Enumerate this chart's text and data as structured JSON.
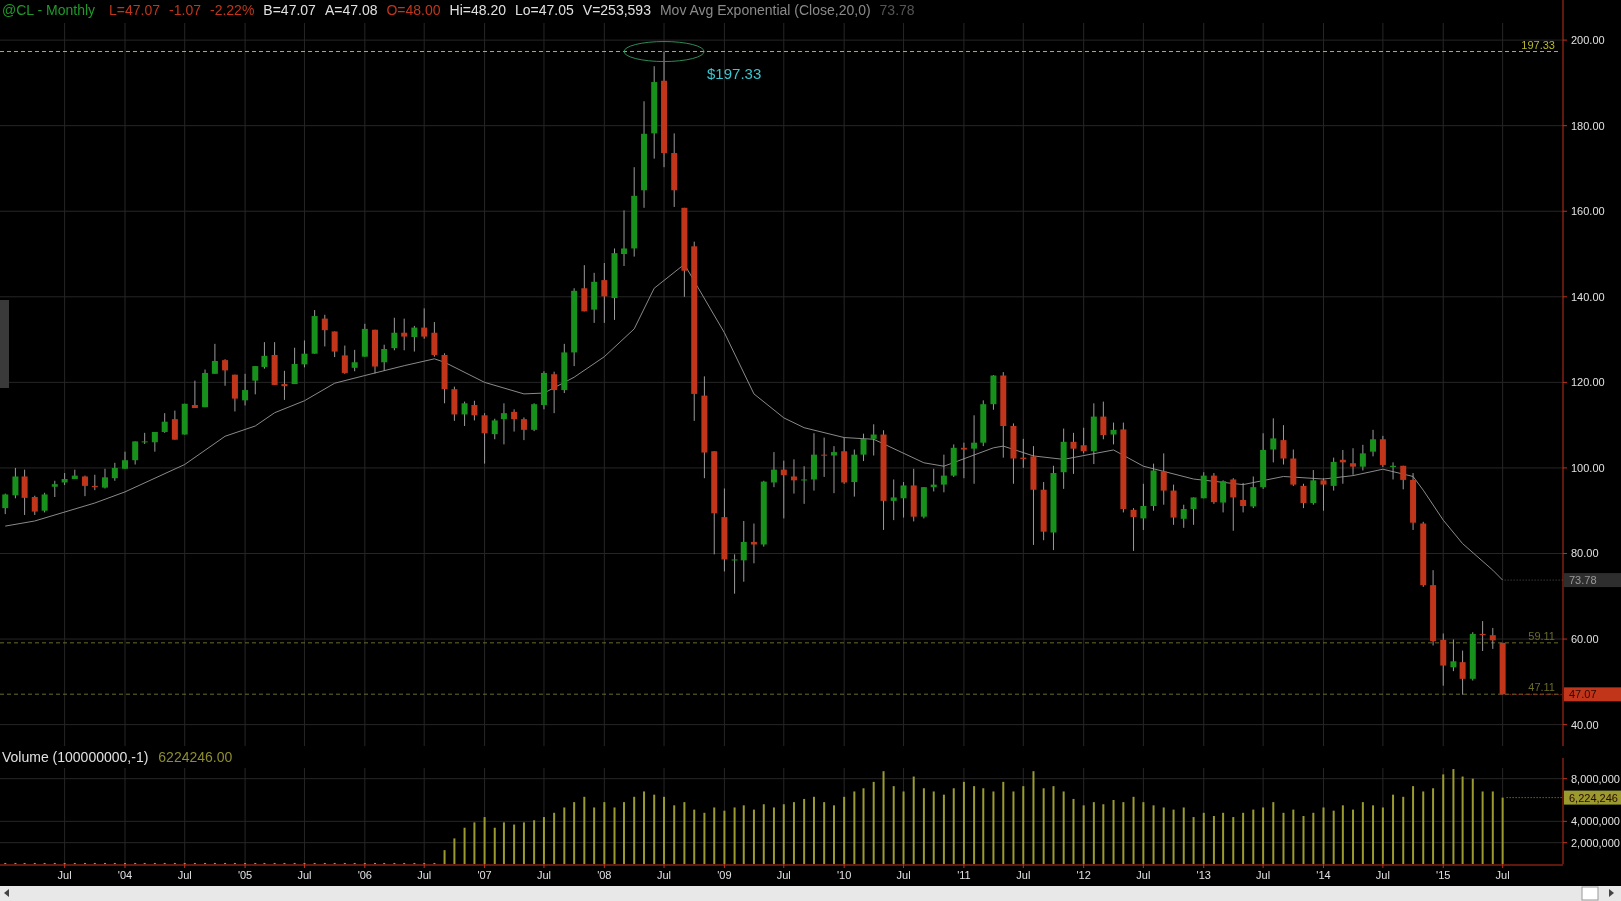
{
  "chart_data": [
    {
      "type": "candlestick",
      "title": "@CL - Monthly",
      "annotations": [
        "L=47.07",
        "-1.07",
        "-2.22%",
        "B=47.07",
        "A=47.08",
        "O=48.00",
        "Hi=48.20",
        "Lo=47.05",
        "V=253,593",
        {
          "text": "$197.33",
          "x": "2008-07",
          "y": 197.33
        },
        {
          "text": "47.07",
          "x": "2015-07",
          "y": 47.07
        }
      ],
      "x": [
        "2003-01",
        "2003-02",
        "2003-03",
        "2003-04",
        "2003-05",
        "2003-06",
        "2003-07",
        "2003-08",
        "2003-09",
        "2003-10",
        "2003-11",
        "2003-12",
        "2004-01",
        "2004-02",
        "2004-03",
        "2004-04",
        "2004-05",
        "2004-06",
        "2004-07",
        "2004-08",
        "2004-09",
        "2004-10",
        "2004-11",
        "2004-12",
        "2005-01",
        "2005-02",
        "2005-03",
        "2005-04",
        "2005-05",
        "2005-06",
        "2005-07",
        "2005-08",
        "2005-09",
        "2005-10",
        "2005-11",
        "2005-12",
        "2006-01",
        "2006-02",
        "2006-03",
        "2006-04",
        "2006-05",
        "2006-06",
        "2006-07",
        "2006-08",
        "2006-09",
        "2006-10",
        "2006-11",
        "2006-12",
        "2007-01",
        "2007-02",
        "2007-03",
        "2007-04",
        "2007-05",
        "2007-06",
        "2007-07",
        "2007-08",
        "2007-09",
        "2007-10",
        "2007-11",
        "2007-12",
        "2008-01",
        "2008-02",
        "2008-03",
        "2008-04",
        "2008-05",
        "2008-06",
        "2008-07",
        "2008-08",
        "2008-09",
        "2008-10",
        "2008-11",
        "2008-12",
        "2009-01",
        "2009-02",
        "2009-03",
        "2009-04",
        "2009-05",
        "2009-06",
        "2009-07",
        "2009-08",
        "2009-09",
        "2009-10",
        "2009-11",
        "2009-12",
        "2010-01",
        "2010-02",
        "2010-03",
        "2010-04",
        "2010-05",
        "2010-06",
        "2010-07",
        "2010-08",
        "2010-09",
        "2010-10",
        "2010-11",
        "2010-12",
        "2011-01",
        "2011-02",
        "2011-03",
        "2011-04",
        "2011-05",
        "2011-06",
        "2011-07",
        "2011-08",
        "2011-09",
        "2011-10",
        "2011-11",
        "2011-12",
        "2012-01",
        "2012-02",
        "2012-03",
        "2012-04",
        "2012-05",
        "2012-06",
        "2012-07",
        "2012-08",
        "2012-09",
        "2012-10",
        "2012-11",
        "2012-12",
        "2013-01",
        "2013-02",
        "2013-03",
        "2013-04",
        "2013-05",
        "2013-06",
        "2013-07",
        "2013-08",
        "2013-09",
        "2013-10",
        "2013-11",
        "2013-12",
        "2014-01",
        "2014-02",
        "2014-03",
        "2014-04",
        "2014-05",
        "2014-06",
        "2014-07",
        "2014-08",
        "2014-09",
        "2014-10",
        "2014-11",
        "2014-12",
        "2015-01",
        "2015-02",
        "2015-03",
        "2015-04",
        "2015-05",
        "2015-06",
        "2015-07"
      ],
      "ohlc": [
        [
          90.6,
          94.0,
          89.2,
          93.8
        ],
        [
          93.6,
          100.0,
          92.9,
          98.0
        ],
        [
          98.0,
          99.6,
          89.0,
          93.0
        ],
        [
          93.2,
          93.5,
          89.0,
          89.8
        ],
        [
          90.0,
          94.2,
          89.6,
          93.8
        ],
        [
          95.6,
          97.0,
          93.2,
          96.2
        ],
        [
          96.6,
          98.8,
          96.0,
          97.4
        ],
        [
          97.4,
          99.6,
          97.4,
          98.2
        ],
        [
          98.0,
          98.2,
          93.4,
          95.8
        ],
        [
          95.8,
          98.4,
          94.8,
          95.5
        ],
        [
          95.4,
          99.8,
          95.2,
          97.8
        ],
        [
          97.6,
          101.2,
          97.0,
          100.0
        ],
        [
          99.8,
          103.8,
          99.8,
          101.8
        ],
        [
          101.8,
          106.2,
          100.8,
          106.2
        ],
        [
          106.0,
          108.2,
          105.6,
          106.2
        ],
        [
          106.0,
          108.4,
          103.8,
          108.4
        ],
        [
          108.4,
          112.8,
          108.2,
          110.8
        ],
        [
          111.4,
          113.4,
          106.6,
          106.6
        ],
        [
          107.8,
          115.0,
          107.8,
          115.0
        ],
        [
          114.7,
          120.4,
          114.0,
          114.0
        ],
        [
          114.2,
          123.0,
          114.2,
          122.2
        ],
        [
          122.0,
          129.0,
          122.0,
          125.0
        ],
        [
          125.2,
          125.4,
          119.2,
          122.8
        ],
        [
          121.8,
          121.8,
          113.2,
          116.2
        ],
        [
          115.8,
          122.0,
          114.6,
          118.2
        ],
        [
          120.4,
          123.8,
          117.2,
          123.8
        ],
        [
          123.6,
          129.4,
          123.2,
          126.2
        ],
        [
          126.4,
          129.4,
          119.4,
          119.4
        ],
        [
          119.6,
          122.7,
          115.9,
          119.1
        ],
        [
          119.6,
          128.1,
          119.6,
          124.3
        ],
        [
          124.2,
          129.8,
          123.5,
          126.7
        ],
        [
          126.7,
          136.9,
          126.7,
          135.5
        ],
        [
          134.9,
          135.8,
          128.4,
          132.2
        ],
        [
          131.9,
          131.9,
          125.9,
          127.2
        ],
        [
          126.3,
          128.6,
          122.0,
          122.2
        ],
        [
          123.4,
          127.6,
          122.6,
          124.7
        ],
        [
          126.0,
          133.7,
          126.0,
          132.5
        ],
        [
          132.3,
          132.3,
          122.1,
          123.7
        ],
        [
          124.7,
          128.8,
          122.7,
          127.8
        ],
        [
          128.0,
          135.1,
          127.5,
          131.6
        ],
        [
          131.6,
          134.9,
          127.5,
          130.7
        ],
        [
          130.6,
          133.2,
          127.2,
          132.8
        ],
        [
          132.8,
          137.3,
          130.2,
          130.7
        ],
        [
          131.6,
          134.1,
          126.0,
          126.4
        ],
        [
          126.4,
          126.8,
          115.1,
          118.4
        ],
        [
          118.4,
          119.0,
          111.0,
          112.5
        ],
        [
          112.5,
          115.5,
          109.8,
          115.1
        ],
        [
          114.7,
          115.7,
          111.1,
          112.3
        ],
        [
          112.3,
          112.8,
          101.0,
          108.1
        ],
        [
          107.9,
          111.5,
          106.7,
          111.1
        ],
        [
          111.4,
          115.1,
          105.5,
          112.8
        ],
        [
          113.1,
          113.7,
          108.5,
          111.4
        ],
        [
          111.4,
          111.8,
          106.5,
          108.9
        ],
        [
          108.9,
          115.1,
          108.6,
          114.9
        ],
        [
          114.7,
          122.6,
          113.7,
          122.2
        ],
        [
          121.9,
          122.5,
          112.8,
          118.2
        ],
        [
          118.2,
          129.0,
          117.5,
          127.0
        ],
        [
          127.0,
          142.0,
          123.8,
          141.4
        ],
        [
          142.0,
          147.4,
          136.6,
          136.6
        ],
        [
          137.0,
          145.6,
          133.9,
          143.5
        ],
        [
          143.9,
          147.9,
          133.9,
          140.1
        ],
        [
          139.7,
          151.3,
          134.6,
          150.2
        ],
        [
          150.0,
          160.2,
          147.2,
          151.3
        ],
        [
          151.3,
          170.3,
          149.4,
          163.6
        ],
        [
          164.9,
          185.7,
          160.8,
          178.1
        ],
        [
          178.2,
          193.9,
          172.3,
          190.2
        ],
        [
          190.5,
          197.33,
          170.3,
          173.6
        ],
        [
          173.6,
          178.2,
          161.0,
          164.9
        ],
        [
          160.8,
          160.8,
          140.0,
          146.1
        ],
        [
          151.8,
          152.9,
          111.0,
          117.3
        ],
        [
          116.9,
          121.4,
          97.6,
          103.6
        ],
        [
          103.9,
          103.9,
          79.8,
          89.4
        ],
        [
          88.5,
          95.2,
          75.8,
          78.6
        ],
        [
          78.4,
          79.8,
          70.6,
          78.6
        ],
        [
          78.4,
          87.6,
          73.4,
          82.7
        ],
        [
          82.7,
          87.0,
          77.7,
          82.1
        ],
        [
          82.1,
          97.0,
          81.6,
          96.8
        ],
        [
          96.6,
          103.7,
          95.5,
          99.6
        ],
        [
          99.6,
          101.7,
          88.2,
          98.3
        ],
        [
          98.0,
          102.0,
          94.0,
          97.1
        ],
        [
          97.1,
          100.4,
          91.6,
          97.3
        ],
        [
          97.3,
          108.1,
          94.7,
          103.1
        ],
        [
          103.1,
          107.1,
          97.9,
          102.9
        ],
        [
          102.9,
          105.1,
          94.1,
          103.7
        ],
        [
          103.9,
          107.1,
          96.3,
          96.6
        ],
        [
          96.7,
          104.3,
          93.3,
          103.1
        ],
        [
          103.1,
          108.0,
          101.6,
          106.8
        ],
        [
          106.8,
          110.2,
          102.9,
          107.8
        ],
        [
          107.8,
          108.8,
          85.5,
          92.3
        ],
        [
          92.3,
          97.3,
          87.8,
          93.1
        ],
        [
          92.9,
          96.7,
          88.4,
          95.9
        ],
        [
          95.9,
          99.8,
          87.5,
          88.6
        ],
        [
          88.6,
          95.5,
          88.2,
          95.5
        ],
        [
          95.5,
          99.8,
          94.5,
          96.1
        ],
        [
          96.1,
          103.1,
          94.3,
          98.2
        ],
        [
          98.2,
          105.5,
          97.9,
          104.7
        ],
        [
          104.7,
          105.9,
          97.6,
          104.3
        ],
        [
          104.5,
          112.3,
          96.3,
          105.9
        ],
        [
          105.9,
          115.8,
          105.1,
          114.9
        ],
        [
          114.9,
          121.7,
          113.6,
          121.6
        ],
        [
          121.6,
          122.4,
          102.4,
          109.8
        ],
        [
          109.8,
          110.4,
          96.3,
          102.2
        ],
        [
          102.4,
          106.8,
          100.0,
          102.1
        ],
        [
          102.7,
          105.1,
          82.0,
          94.9
        ],
        [
          94.9,
          96.7,
          83.1,
          85.1
        ],
        [
          84.9,
          100.5,
          80.8,
          98.8
        ],
        [
          99.0,
          109.2,
          95.1,
          106.1
        ],
        [
          106.1,
          108.2,
          98.6,
          104.5
        ],
        [
          105.3,
          109.4,
          103.4,
          103.9
        ],
        [
          103.9,
          115.1,
          100.9,
          112.0
        ],
        [
          112.0,
          115.5,
          106.7,
          107.7
        ],
        [
          107.8,
          110.6,
          105.5,
          108.9
        ],
        [
          109.0,
          110.6,
          89.6,
          90.4
        ],
        [
          90.2,
          90.6,
          80.6,
          88.5
        ],
        [
          88.2,
          96.3,
          85.5,
          91.1
        ],
        [
          91.1,
          101.0,
          90.0,
          99.4
        ],
        [
          99.2,
          103.4,
          91.4,
          94.7
        ],
        [
          94.7,
          96.1,
          86.7,
          88.4
        ],
        [
          88.1,
          91.4,
          86.0,
          90.4
        ],
        [
          90.4,
          93.1,
          86.7,
          93.1
        ],
        [
          92.9,
          99.0,
          92.9,
          98.2
        ],
        [
          98.2,
          98.8,
          91.6,
          92.0
        ],
        [
          91.9,
          97.1,
          89.6,
          96.9
        ],
        [
          97.3,
          97.6,
          85.3,
          93.1
        ],
        [
          92.5,
          96.5,
          89.6,
          91.1
        ],
        [
          91.0,
          98.0,
          90.6,
          95.5
        ],
        [
          95.5,
          108.1,
          95.1,
          104.2
        ],
        [
          104.3,
          111.6,
          101.3,
          106.9
        ],
        [
          106.5,
          110.0,
          100.8,
          102.2
        ],
        [
          102.2,
          104.3,
          95.8,
          96.1
        ],
        [
          95.8,
          96.3,
          90.6,
          91.8
        ],
        [
          91.8,
          99.5,
          91.4,
          97.1
        ],
        [
          97.1,
          97.6,
          90.0,
          96.1
        ],
        [
          95.8,
          102.4,
          94.7,
          101.4
        ],
        [
          101.9,
          104.2,
          96.3,
          101.3
        ],
        [
          101.1,
          104.6,
          98.4,
          100.3
        ],
        [
          100.3,
          105.4,
          99.4,
          103.4
        ],
        [
          103.8,
          108.9,
          102.7,
          106.7
        ],
        [
          106.7,
          107.5,
          100.2,
          100.7
        ],
        [
          100.2,
          101.3,
          97.3,
          100.5
        ],
        [
          100.5,
          100.5,
          95.0,
          97.2
        ],
        [
          97.2,
          98.8,
          85.5,
          87.2
        ],
        [
          87.0,
          87.4,
          72.2,
          72.6
        ],
        [
          72.6,
          76.1,
          58.5,
          59.5
        ],
        [
          59.8,
          61.3,
          49.1,
          53.8
        ],
        [
          53.4,
          59.9,
          52.5,
          54.8
        ],
        [
          54.6,
          57.3,
          47.0,
          50.7
        ],
        [
          50.7,
          61.6,
          50.3,
          61.2
        ],
        [
          61.2,
          64.2,
          57.2,
          60.9
        ],
        [
          60.9,
          62.6,
          57.7,
          59.7
        ],
        [
          59.11,
          59.11,
          47.05,
          47.07
        ]
      ],
      "series": [
        {
          "type": "line",
          "name": "Mov Avg Exponential (Close,20,0)",
          "color": "#8a8a8a",
          "x": [
            "2003-01",
            "2003-04",
            "2003-10",
            "2004-01",
            "2004-07",
            "2004-11",
            "2005-02",
            "2005-04",
            "2005-07",
            "2005-10",
            "2006-01",
            "2006-05",
            "2006-08",
            "2006-09",
            "2007-01",
            "2007-05",
            "2007-07",
            "2007-10",
            "2008-01",
            "2008-04",
            "2008-06",
            "2008-09",
            "2009-01",
            "2009-04",
            "2009-07",
            "2009-09",
            "2010-01",
            "2010-04",
            "2010-09",
            "2010-11",
            "2011-04",
            "2011-05",
            "2011-08",
            "2011-11",
            "2012-04",
            "2012-07",
            "2012-12",
            "2013-05",
            "2013-09",
            "2014-01",
            "2014-04",
            "2014-07",
            "2014-10",
            "2014-11",
            "2015-01",
            "2015-03",
            "2015-06",
            "2015-07"
          ],
          "values": [
            86.4,
            87.6,
            91.8,
            94.4,
            100.8,
            107.4,
            109.8,
            112.9,
            115.7,
            119.8,
            121.6,
            123.9,
            125.5,
            124.7,
            120.0,
            117.3,
            117.5,
            121.2,
            126.0,
            132.5,
            142.0,
            147.6,
            131.6,
            117.3,
            111.7,
            109.4,
            107.1,
            106.7,
            101.2,
            100.4,
            104.7,
            105.1,
            102.8,
            102.0,
            104.2,
            100.4,
            97.4,
            96.1,
            98.0,
            97.4,
            98.2,
            99.7,
            98.0,
            94.8,
            87.8,
            82.3,
            76.1,
            73.78
          ],
          "value_labels": [
            null,
            null,
            null,
            null,
            null,
            null,
            null,
            null,
            null,
            null,
            null,
            null,
            null,
            null,
            null,
            null,
            null,
            null,
            null,
            null,
            null,
            null,
            null,
            null,
            null,
            null,
            null,
            null,
            null,
            null,
            null,
            null,
            null,
            null,
            null,
            null,
            null,
            null,
            null,
            null,
            null,
            null,
            null,
            null,
            null,
            null,
            null,
            "73.78"
          ]
        }
      ],
      "xlim": [
        "2002-12-16",
        "2016-01-01"
      ],
      "xticks": [
        {
          "value": "2003-07",
          "label": null
        },
        {
          "value": "2004-01",
          "label": null
        },
        {
          "value": "2004-07",
          "label": null
        },
        {
          "value": "2005-01",
          "label": null
        },
        {
          "value": "2005-07",
          "label": null
        },
        {
          "value": "2006-01",
          "label": null
        },
        {
          "value": "2006-07",
          "label": null
        },
        {
          "value": "2007-01",
          "label": null
        },
        {
          "value": "2007-07",
          "label": null
        },
        {
          "value": "2008-01",
          "label": null
        },
        {
          "value": "2008-07",
          "label": null
        },
        {
          "value": "2009-01",
          "label": null
        },
        {
          "value": "2009-07",
          "label": null
        },
        {
          "value": "2010-01",
          "label": null
        },
        {
          "value": "2010-07",
          "label": null
        },
        {
          "value": "2011-01",
          "label": null
        },
        {
          "value": "2011-07",
          "label": null
        },
        {
          "value": "2012-01",
          "label": null
        },
        {
          "value": "2012-07",
          "label": null
        },
        {
          "value": "2013-01",
          "label": null
        },
        {
          "value": "2013-07",
          "label": null
        },
        {
          "value": "2014-01",
          "label": null
        },
        {
          "value": "2014-07",
          "label": null
        },
        {
          "value": "2015-01",
          "label": null
        },
        {
          "value": "2015-07",
          "label": null
        }
      ],
      "ylim": [
        35,
        204
      ],
      "yticks": [
        {
          "value": 40,
          "label": "40.00"
        },
        {
          "value": 60,
          "label": "60.00"
        },
        {
          "value": 80,
          "label": "80.00"
        },
        {
          "value": 100,
          "label": "100.00"
        },
        {
          "value": 120,
          "label": "120.00"
        },
        {
          "value": 140,
          "label": "140.00"
        },
        {
          "value": 160,
          "label": "160.00"
        },
        {
          "value": 180,
          "label": "180.00"
        },
        {
          "value": 200,
          "label": "200.00"
        }
      ],
      "ref_lines": [
        {
          "axis": "y",
          "value": 197.33,
          "label": "197.33",
          "color": "#b8b82c",
          "line_style": "dashed"
        },
        {
          "axis": "y",
          "value": 59.11,
          "label": "59.11",
          "color": "#6b6b2c",
          "line_style": "dashed"
        },
        {
          "axis": "y",
          "value": 47.11,
          "label": "47.11",
          "color": "#6b6b2c",
          "line_style": "dashed"
        }
      ],
      "grid": true,
      "tick_labels": "y"
    },
    {
      "type": "bar",
      "title": "Volume (100000000,-1)",
      "color": "#9a9a2e",
      "annotations": [
        "6224246.00",
        {
          "text": "6,224,246",
          "x": "2015-07",
          "y": 6224246
        }
      ],
      "x": [
        "2003-01",
        "2003-02",
        "2003-03",
        "2003-04",
        "2003-05",
        "2003-06",
        "2003-07",
        "2003-08",
        "2003-09",
        "2003-10",
        "2003-11",
        "2003-12",
        "2004-01",
        "2004-02",
        "2004-03",
        "2004-04",
        "2004-05",
        "2004-06",
        "2004-07",
        "2004-08",
        "2004-09",
        "2004-10",
        "2004-11",
        "2004-12",
        "2005-01",
        "2005-02",
        "2005-03",
        "2005-04",
        "2005-05",
        "2005-06",
        "2005-07",
        "2005-08",
        "2005-09",
        "2005-10",
        "2005-11",
        "2005-12",
        "2006-01",
        "2006-02",
        "2006-03",
        "2006-04",
        "2006-05",
        "2006-06",
        "2006-07",
        "2006-08",
        "2006-09",
        "2006-10",
        "2006-11",
        "2006-12",
        "2007-01",
        "2007-02",
        "2007-03",
        "2007-04",
        "2007-05",
        "2007-06",
        "2007-07",
        "2007-08",
        "2007-09",
        "2007-10",
        "2007-11",
        "2007-12",
        "2008-01",
        "2008-02",
        "2008-03",
        "2008-04",
        "2008-05",
        "2008-06",
        "2008-07",
        "2008-08",
        "2008-09",
        "2008-10",
        "2008-11",
        "2008-12",
        "2009-01",
        "2009-02",
        "2009-03",
        "2009-04",
        "2009-05",
        "2009-06",
        "2009-07",
        "2009-08",
        "2009-09",
        "2009-10",
        "2009-11",
        "2009-12",
        "2010-01",
        "2010-02",
        "2010-03",
        "2010-04",
        "2010-05",
        "2010-06",
        "2010-07",
        "2010-08",
        "2010-09",
        "2010-10",
        "2010-11",
        "2010-12",
        "2011-01",
        "2011-02",
        "2011-03",
        "2011-04",
        "2011-05",
        "2011-06",
        "2011-07",
        "2011-08",
        "2011-09",
        "2011-10",
        "2011-11",
        "2011-12",
        "2012-01",
        "2012-02",
        "2012-03",
        "2012-04",
        "2012-05",
        "2012-06",
        "2012-07",
        "2012-08",
        "2012-09",
        "2012-10",
        "2012-11",
        "2012-12",
        "2013-01",
        "2013-02",
        "2013-03",
        "2013-04",
        "2013-05",
        "2013-06",
        "2013-07",
        "2013-08",
        "2013-09",
        "2013-10",
        "2013-11",
        "2013-12",
        "2014-01",
        "2014-02",
        "2014-03",
        "2014-04",
        "2014-05",
        "2014-06",
        "2014-07",
        "2014-08",
        "2014-09",
        "2014-10",
        "2014-11",
        "2014-12",
        "2015-01",
        "2015-02",
        "2015-03",
        "2015-04",
        "2015-05",
        "2015-06",
        "2015-07"
      ],
      "values": [
        100000,
        100000,
        100000,
        100000,
        100000,
        100000,
        100000,
        100000,
        100000,
        100000,
        100000,
        100000,
        100000,
        100000,
        100000,
        100000,
        100000,
        100000,
        100000,
        100000,
        100000,
        100000,
        100000,
        100000,
        100000,
        100000,
        100000,
        100000,
        100000,
        100000,
        100000,
        100000,
        100000,
        100000,
        100000,
        100000,
        100000,
        100000,
        100000,
        100000,
        100000,
        100000,
        100000,
        100000,
        1300000,
        2400000,
        3400000,
        3900000,
        4400000,
        3400000,
        3900000,
        3700000,
        3900000,
        4100000,
        4400000,
        4800000,
        5300000,
        5800000,
        6300000,
        5300000,
        5800000,
        5300000,
        5800000,
        6300000,
        6800000,
        6500000,
        6300000,
        5500000,
        5800000,
        5100000,
        4800000,
        5300000,
        5000000,
        5300000,
        5500000,
        5100000,
        5600000,
        5300000,
        5600000,
        5800000,
        6100000,
        6300000,
        5800000,
        5500000,
        6300000,
        6800000,
        7100000,
        7700000,
        8700000,
        7300000,
        6800000,
        8200000,
        7100000,
        6800000,
        6500000,
        7100000,
        7700000,
        7300000,
        7100000,
        6800000,
        7700000,
        6800000,
        7300000,
        8700000,
        7100000,
        7300000,
        6800000,
        6100000,
        5500000,
        5800000,
        5600000,
        6000000,
        5800000,
        6300000,
        5800000,
        5500000,
        5300000,
        5100000,
        5300000,
        4400000,
        4800000,
        4500000,
        4800000,
        4400000,
        4800000,
        5100000,
        5300000,
        5800000,
        4800000,
        5100000,
        4500000,
        4800000,
        5300000,
        5000000,
        5500000,
        5100000,
        5800000,
        5500000,
        5300000,
        6500000,
        6300000,
        7300000,
        6800000,
        7100000,
        8400000,
        8900000,
        8200000,
        8000000,
        6800000,
        6800000,
        6224246
      ],
      "xlim": [
        "2002-12-16",
        "2016-01-01"
      ],
      "xticks": [
        {
          "value": "2003-07",
          "label": "Jul"
        },
        {
          "value": "2004-01",
          "label": "'04"
        },
        {
          "value": "2004-07",
          "label": "Jul"
        },
        {
          "value": "2005-01",
          "label": "'05"
        },
        {
          "value": "2005-07",
          "label": "Jul"
        },
        {
          "value": "2006-01",
          "label": "'06"
        },
        {
          "value": "2006-07",
          "label": "Jul"
        },
        {
          "value": "2007-01",
          "label": "'07"
        },
        {
          "value": "2007-07",
          "label": "Jul"
        },
        {
          "value": "2008-01",
          "label": "'08"
        },
        {
          "value": "2008-07",
          "label": "Jul"
        },
        {
          "value": "2009-01",
          "label": "'09"
        },
        {
          "value": "2009-07",
          "label": "Jul"
        },
        {
          "value": "2010-01",
          "label": "'10"
        },
        {
          "value": "2010-07",
          "label": "Jul"
        },
        {
          "value": "2011-01",
          "label": "'11"
        },
        {
          "value": "2011-07",
          "label": "Jul"
        },
        {
          "value": "2012-01",
          "label": "'12"
        },
        {
          "value": "2012-07",
          "label": "Jul"
        },
        {
          "value": "2013-01",
          "label": "'13"
        },
        {
          "value": "2013-07",
          "label": "Jul"
        },
        {
          "value": "2014-01",
          "label": "'14"
        },
        {
          "value": "2014-07",
          "label": "Jul"
        },
        {
          "value": "2015-01",
          "label": "'15"
        },
        {
          "value": "2015-07",
          "label": "Jul"
        }
      ],
      "ylim": [
        0,
        9000000
      ],
      "yticks": [
        {
          "value": 2000000,
          "label": "2,000,000"
        },
        {
          "value": 4000000,
          "label": "4,000,000"
        },
        {
          "value": 8000000,
          "label": "8,000,000"
        }
      ],
      "grid": true
    }
  ]
}
